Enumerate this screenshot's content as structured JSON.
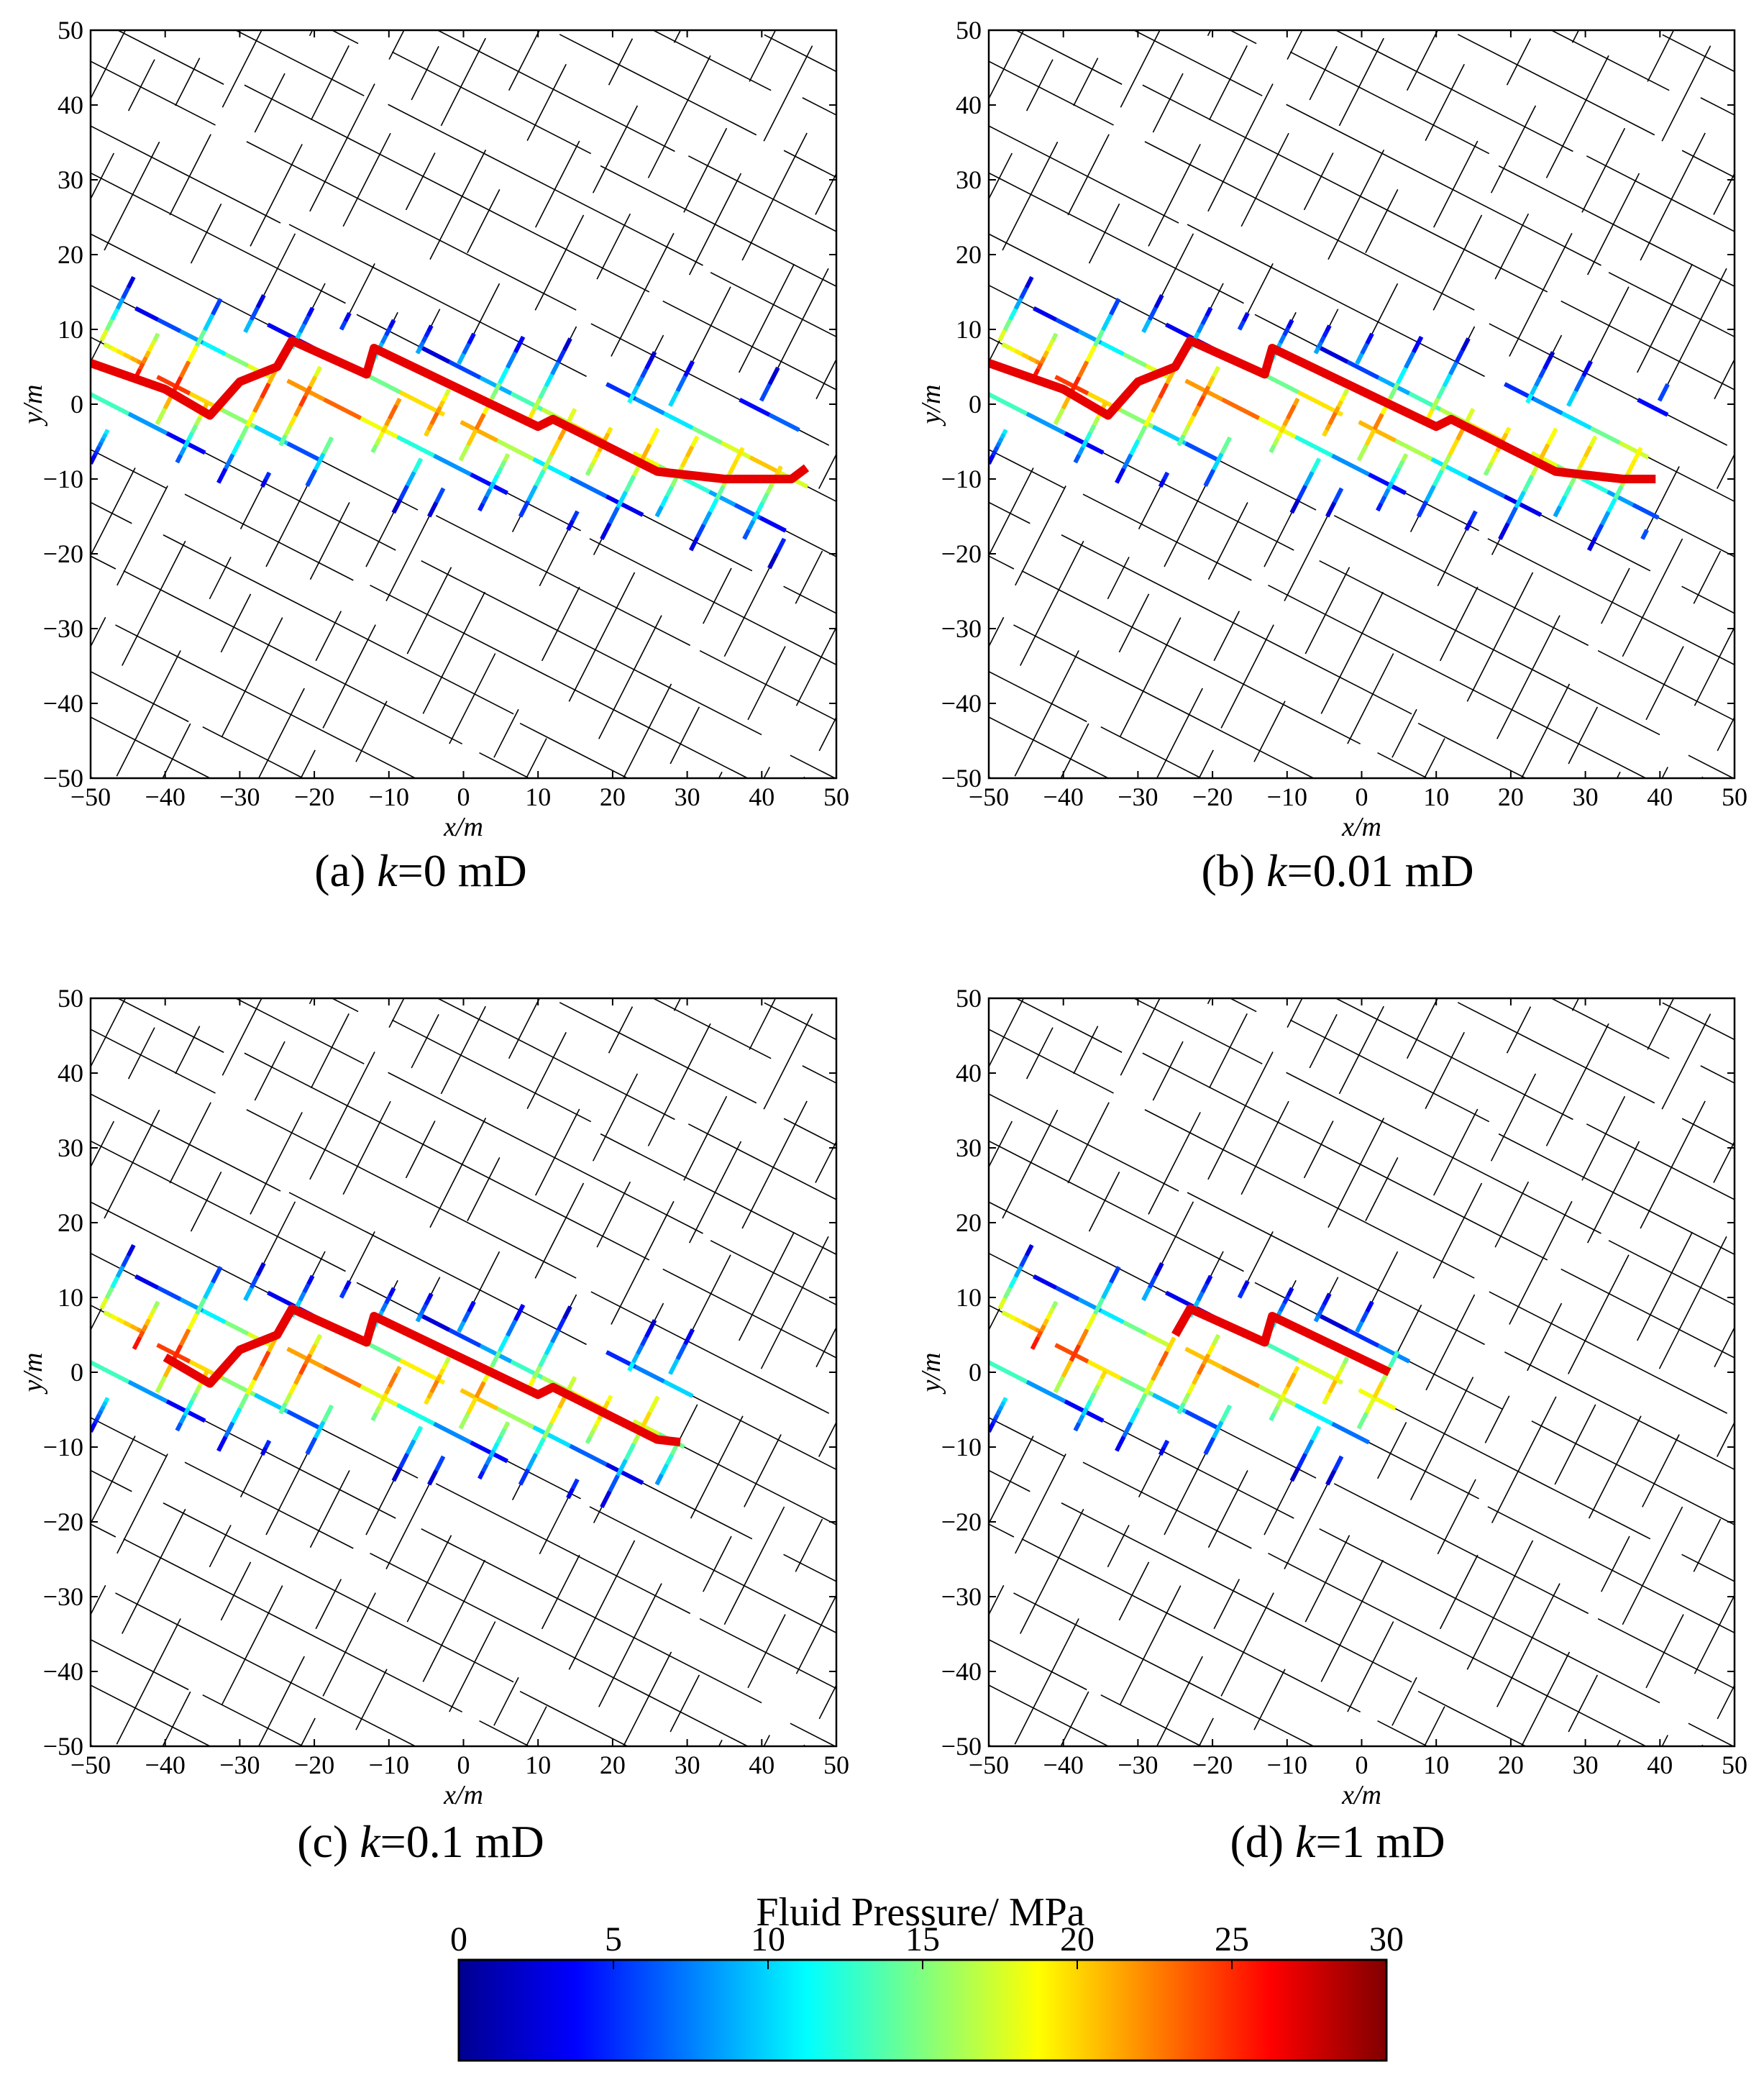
{
  "chart_data": {
    "type": "line",
    "description_units": "x and y in metres; color = fluid pressure in MPa",
    "panels": [
      {
        "id": "a",
        "caption_prefix": "(a) ",
        "caption_var": "k",
        "caption_suffix": "=0 mD",
        "xlabel": "x/m",
        "ylabel": "y/m",
        "xlim": [
          -50,
          50
        ],
        "ylim": [
          -50,
          50
        ],
        "xticks": [
          "−50",
          "−40",
          "−30",
          "−20",
          "−10",
          "0",
          "10",
          "20",
          "30",
          "40",
          "50"
        ],
        "yticks": [
          "50",
          "40",
          "30",
          "20",
          "10",
          "0",
          "−10",
          "−20",
          "−30",
          "−40",
          "−50"
        ],
        "extent": 1.0
      },
      {
        "id": "b",
        "caption_prefix": "(b) ",
        "caption_var": "k",
        "caption_suffix": "=0.01 mD",
        "xlabel": "x/m",
        "ylabel": "y/m",
        "xlim": [
          -50,
          50
        ],
        "ylim": [
          -50,
          50
        ],
        "xticks": [
          "−50",
          "−40",
          "−30",
          "−20",
          "−10",
          "0",
          "10",
          "20",
          "30",
          "40",
          "50"
        ],
        "yticks": [
          "50",
          "40",
          "30",
          "20",
          "10",
          "0",
          "−10",
          "−20",
          "−30",
          "−40",
          "−50"
        ],
        "extent": 0.93
      },
      {
        "id": "c",
        "caption_prefix": "(c) ",
        "caption_var": "k",
        "caption_suffix": "=0.1 mD",
        "xlabel": "x/m",
        "ylabel": "y/m",
        "xlim": [
          -50,
          50
        ],
        "ylim": [
          -50,
          50
        ],
        "xticks": [
          "−50",
          "−40",
          "−30",
          "−20",
          "−10",
          "0",
          "10",
          "20",
          "30",
          "40",
          "50"
        ],
        "yticks": [
          "50",
          "40",
          "30",
          "20",
          "10",
          "0",
          "−10",
          "−20",
          "−30",
          "−40",
          "−50"
        ],
        "extent": 0.82
      },
      {
        "id": "d",
        "caption_prefix": "(d) ",
        "caption_var": "k",
        "caption_suffix": "=1 mD",
        "xlabel": "x/m",
        "ylabel": "y/m",
        "xlim": [
          -50,
          50
        ],
        "ylim": [
          -50,
          50
        ],
        "xticks": [
          "−50",
          "−40",
          "−30",
          "−20",
          "−10",
          "0",
          "10",
          "20",
          "30",
          "40",
          "50"
        ],
        "yticks": [
          "50",
          "40",
          "30",
          "20",
          "10",
          "0",
          "−10",
          "−20",
          "−30",
          "−40",
          "−50"
        ],
        "extent": 0.55
      }
    ],
    "natural_fractures": {
      "set1": {
        "angle_deg": -27,
        "spacing_m": 6.5,
        "color": "#000000"
      },
      "set2": {
        "angle_deg": 63,
        "spacing_m": 5.5,
        "color": "#000000"
      }
    },
    "hydraulic_fracture_main": {
      "points": [
        [
          -50,
          5.5
        ],
        [
          -40,
          2
        ],
        [
          -34,
          -1.5
        ],
        [
          -30,
          3
        ],
        [
          -25,
          5
        ],
        [
          -23,
          8.5
        ],
        [
          -13,
          4
        ],
        [
          -12,
          7.5
        ],
        [
          10,
          -3
        ],
        [
          12,
          -2
        ],
        [
          26,
          -9
        ],
        [
          35,
          -10
        ],
        [
          44,
          -10
        ],
        [
          46,
          -8.5
        ]
      ],
      "pressure_mpa": 27
    },
    "colorbar": {
      "title": "Fluid Pressure/ MPa",
      "min": 0,
      "max": 30,
      "ticks": [
        "0",
        "5",
        "10",
        "15",
        "20",
        "25",
        "30"
      ],
      "colormap": "jet",
      "stops": [
        "#00008f",
        "#0000ff",
        "#00ffff",
        "#ffff00",
        "#ff0000",
        "#800000"
      ]
    }
  }
}
